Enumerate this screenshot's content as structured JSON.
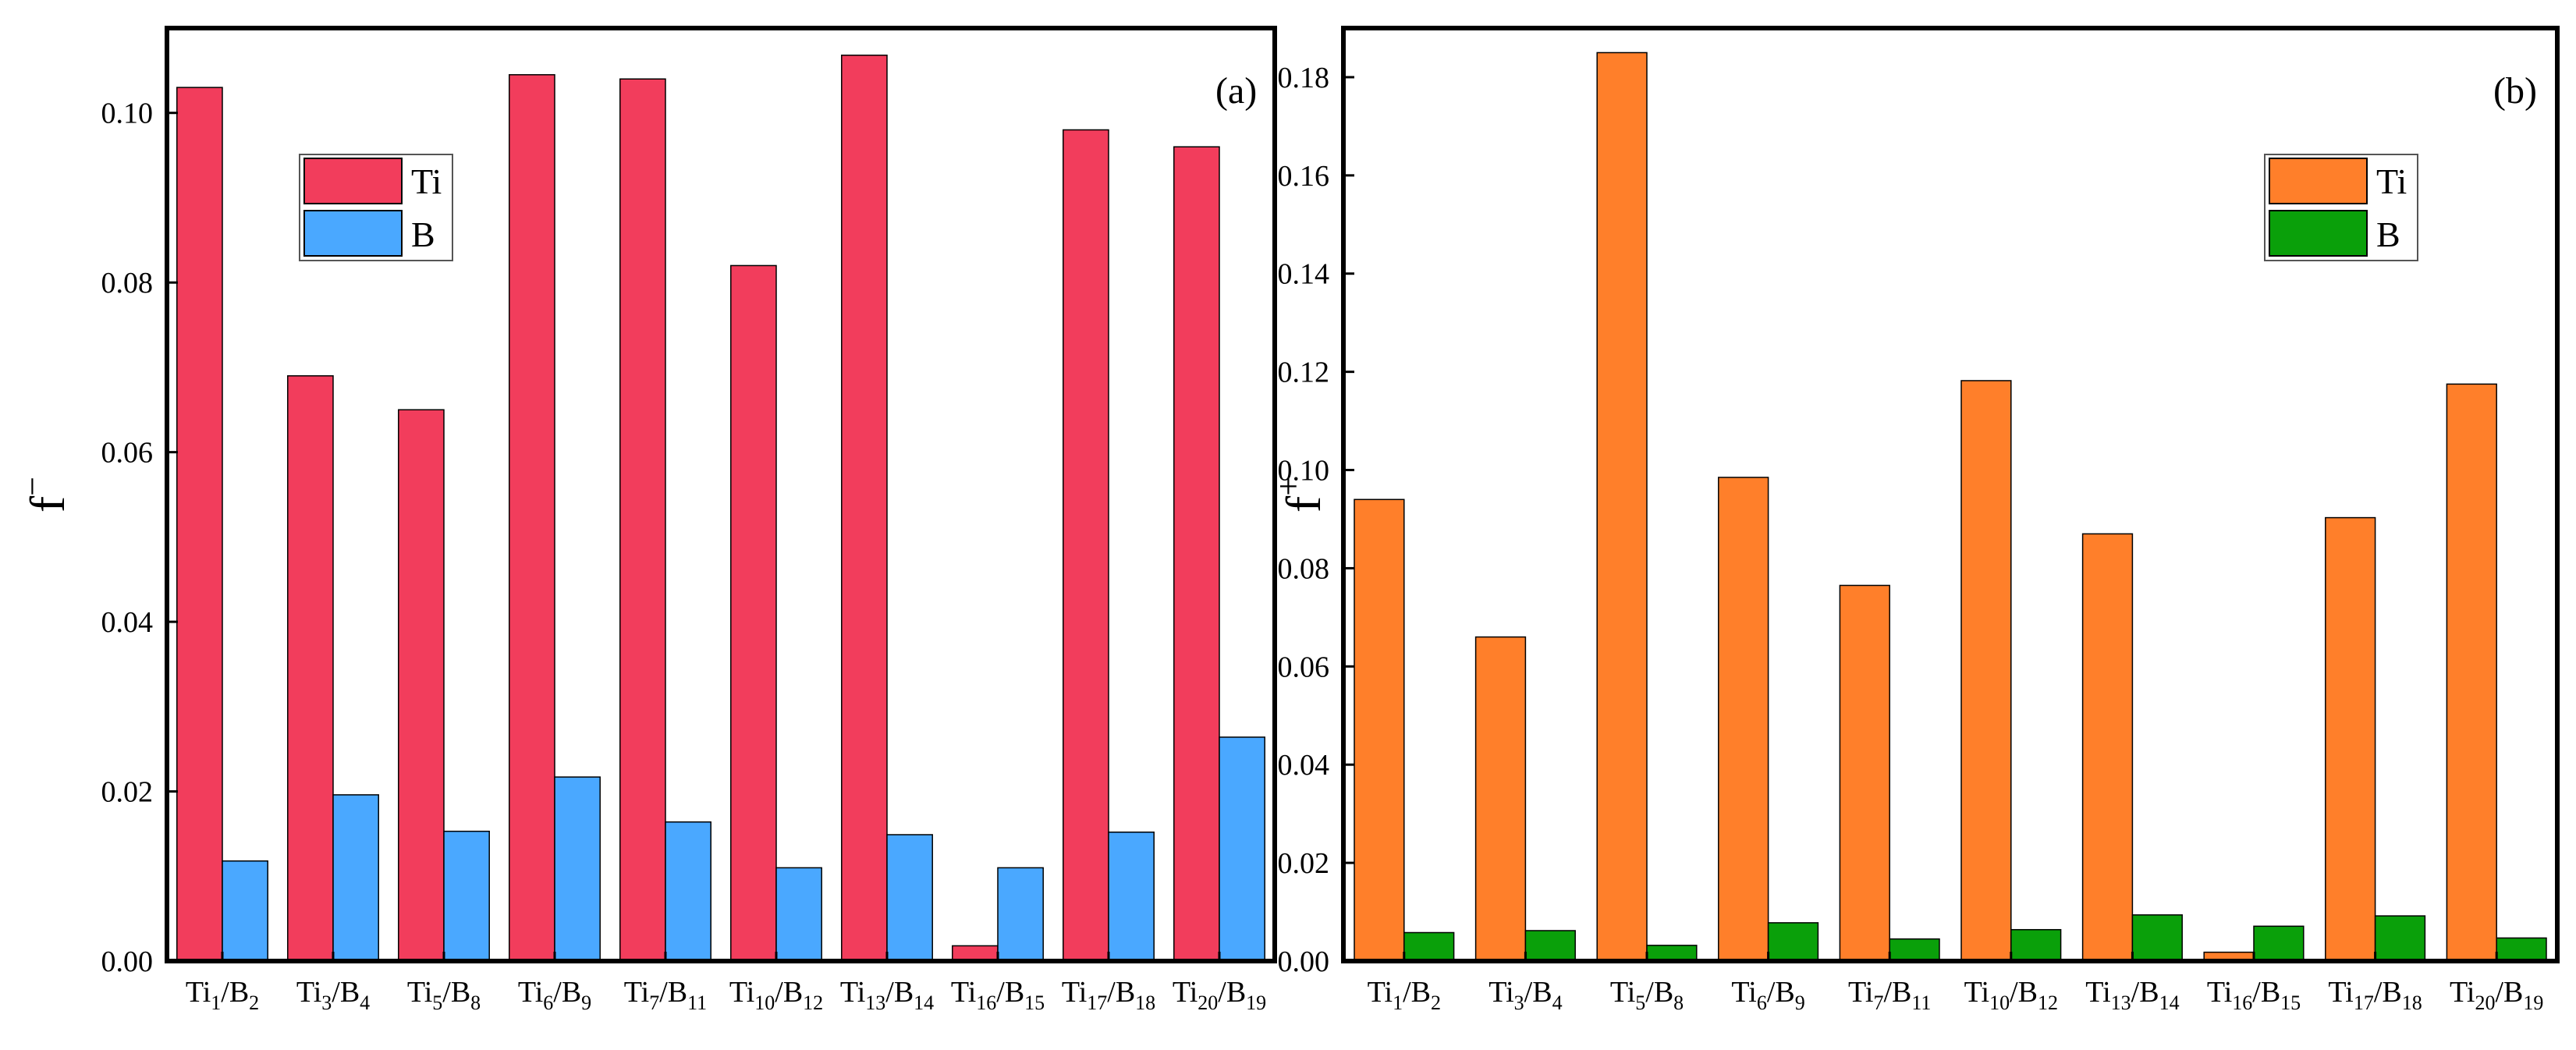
{
  "chart_data": [
    {
      "type": "bar",
      "panel_label": "(a)",
      "title": "",
      "xlabel": "",
      "ylabel": "f",
      "ylabel_sup": "−",
      "ylim": [
        0,
        0.11
      ],
      "yticks": [
        "0.00",
        "0.02",
        "0.04",
        "0.06",
        "0.08",
        "0.10"
      ],
      "ytick_values": [
        0,
        0.02,
        0.04,
        0.06,
        0.08,
        0.1
      ],
      "categories": [
        {
          "ti": "Ti",
          "ti_sub": "1",
          "sep": "/B",
          "b_sub": "2"
        },
        {
          "ti": "Ti",
          "ti_sub": "3",
          "sep": "/B",
          "b_sub": "4"
        },
        {
          "ti": "Ti",
          "ti_sub": "5",
          "sep": "/B",
          "b_sub": "8"
        },
        {
          "ti": "Ti",
          "ti_sub": "6",
          "sep": "/B",
          "b_sub": "9"
        },
        {
          "ti": "Ti",
          "ti_sub": "7",
          "sep": "/B",
          "b_sub": "11"
        },
        {
          "ti": "Ti",
          "ti_sub": "10",
          "sep": "/B",
          "b_sub": "12"
        },
        {
          "ti": "Ti",
          "ti_sub": "13",
          "sep": "/B",
          "b_sub": "14"
        },
        {
          "ti": "Ti",
          "ti_sub": "16",
          "sep": "/B",
          "b_sub": "15"
        },
        {
          "ti": "Ti",
          "ti_sub": "17",
          "sep": "/B",
          "b_sub": "18"
        },
        {
          "ti": "Ti",
          "ti_sub": "20",
          "sep": "/B",
          "b_sub": "19"
        }
      ],
      "series": [
        {
          "name": "Ti",
          "color": "#f23d5c",
          "values": [
            0.103,
            0.069,
            0.065,
            0.1045,
            0.104,
            0.082,
            0.1068,
            0.0018,
            0.098,
            0.096
          ]
        },
        {
          "name": "B",
          "color": "#4aa8ff",
          "values": [
            0.0118,
            0.0196,
            0.0153,
            0.0217,
            0.0164,
            0.011,
            0.0149,
            0.011,
            0.0152,
            0.0264
          ]
        }
      ],
      "legend_position": "top-left"
    },
    {
      "type": "bar",
      "panel_label": "(b)",
      "title": "",
      "xlabel": "",
      "ylabel": "f",
      "ylabel_sup": "+",
      "ylim": [
        0,
        0.19
      ],
      "yticks": [
        "0.00",
        "0.02",
        "0.04",
        "0.06",
        "0.08",
        "0.10",
        "0.12",
        "0.14",
        "0.16",
        "0.18"
      ],
      "ytick_values": [
        0,
        0.02,
        0.04,
        0.06,
        0.08,
        0.1,
        0.12,
        0.14,
        0.16,
        0.18
      ],
      "categories": [
        {
          "ti": "Ti",
          "ti_sub": "1",
          "sep": "/B",
          "b_sub": "2"
        },
        {
          "ti": "Ti",
          "ti_sub": "3",
          "sep": "/B",
          "b_sub": "4"
        },
        {
          "ti": "Ti",
          "ti_sub": "5",
          "sep": "/B",
          "b_sub": "8"
        },
        {
          "ti": "Ti",
          "ti_sub": "6",
          "sep": "/B",
          "b_sub": "9"
        },
        {
          "ti": "Ti",
          "ti_sub": "7",
          "sep": "/B",
          "b_sub": "11"
        },
        {
          "ti": "Ti",
          "ti_sub": "10",
          "sep": "/B",
          "b_sub": "12"
        },
        {
          "ti": "Ti",
          "ti_sub": "13",
          "sep": "/B",
          "b_sub": "14"
        },
        {
          "ti": "Ti",
          "ti_sub": "16",
          "sep": "/B",
          "b_sub": "15"
        },
        {
          "ti": "Ti",
          "ti_sub": "17",
          "sep": "/B",
          "b_sub": "18"
        },
        {
          "ti": "Ti",
          "ti_sub": "20",
          "sep": "/B",
          "b_sub": "19"
        }
      ],
      "series": [
        {
          "name": "Ti",
          "color": "#ff7f2a",
          "values": [
            0.094,
            0.066,
            0.185,
            0.0985,
            0.0765,
            0.1182,
            0.087,
            0.0018,
            0.0903,
            0.1175
          ]
        },
        {
          "name": "B",
          "color": "#0aa00a",
          "values": [
            0.0058,
            0.0062,
            0.0032,
            0.0078,
            0.0045,
            0.0064,
            0.0094,
            0.0071,
            0.0092,
            0.0047
          ]
        }
      ],
      "legend_position": "top-right"
    }
  ]
}
